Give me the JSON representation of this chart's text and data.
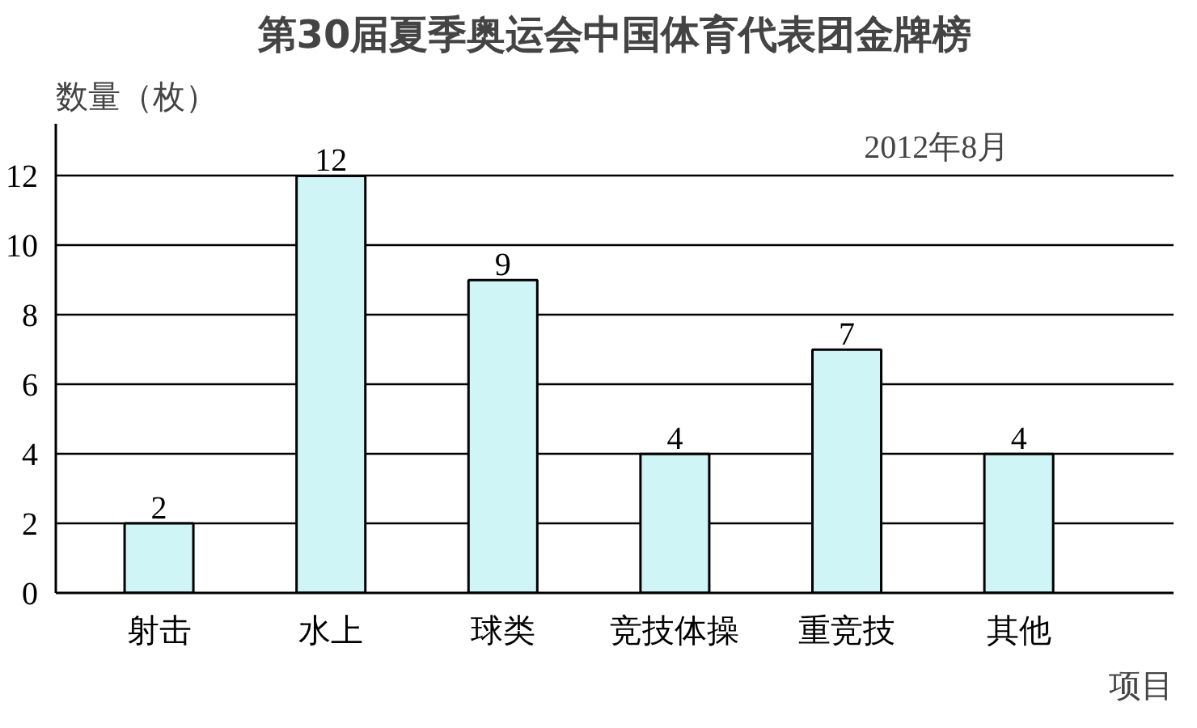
{
  "chart_data": {
    "type": "bar",
    "title": "第30届夏季奥运会中国体育代表团金牌榜",
    "ylabel": "数量（枚）",
    "xlabel": "项目",
    "annotations": [
      "2012年8月"
    ],
    "categories": [
      "射击",
      "水上",
      "球类",
      "竞技体操",
      "重竞技",
      "其他"
    ],
    "values": [
      2,
      12,
      9,
      4,
      7,
      4
    ],
    "color": "#cff5f7",
    "ylim": [
      0,
      13.5
    ],
    "yticks": [
      0,
      2,
      4,
      6,
      8,
      10,
      12
    ],
    "grid": "y",
    "data_labels": true
  }
}
